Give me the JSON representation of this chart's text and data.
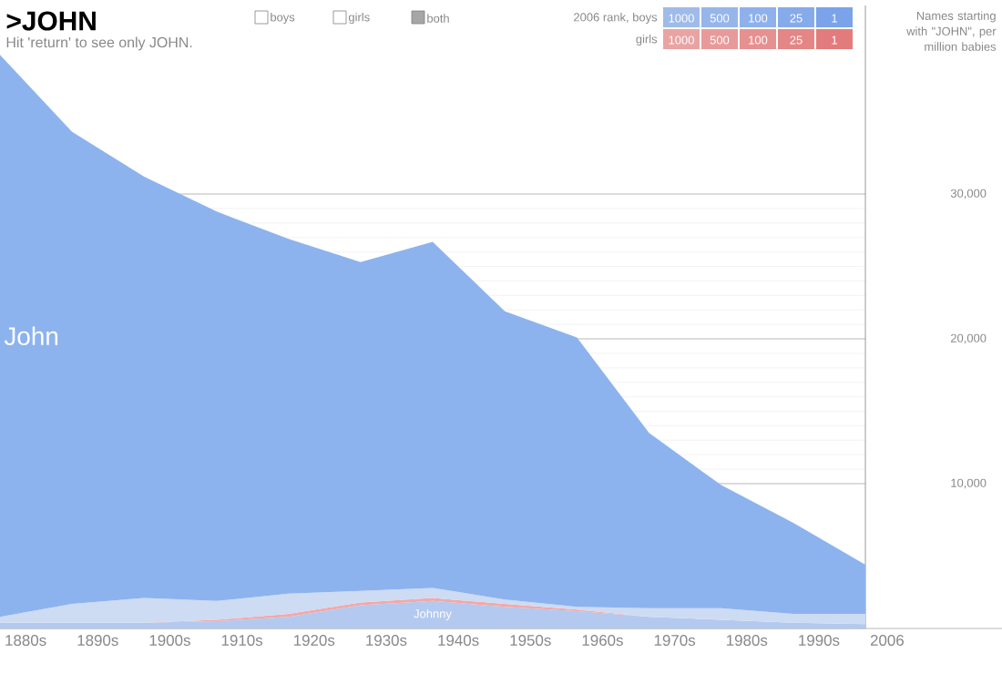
{
  "chart_data": {
    "type": "area",
    "title": ">JOHN",
    "subtitle": "Hit 'return' to see only JOHN.",
    "ylabel": "Names starting with \"JOHN\", per million babies",
    "annotations": [
      "boys",
      "girls",
      "both",
      "2006 rank, boys",
      "1000",
      "500",
      "100",
      "25",
      "1",
      "girls",
      "1000",
      "500",
      "100",
      "25",
      "1"
    ],
    "stacked": true,
    "grid": "y",
    "categories": [
      "1880s",
      "1890s",
      "1900s",
      "1910s",
      "1920s",
      "1930s",
      "1940s",
      "1950s",
      "1960s",
      "1970s",
      "1980s",
      "1990s",
      "2006"
    ],
    "ylim": [
      0,
      40000
    ],
    "yticks": [
      {
        "value": 10000,
        "label": "10,000"
      },
      {
        "value": 20000,
        "label": "20,000"
      },
      {
        "value": 30000,
        "label": "30,000"
      }
    ],
    "series": [
      {
        "name": "Johnny",
        "color": "#b3c9f0",
        "values": [
          400,
          400,
          400,
          500,
          800,
          1600,
          1900,
          1500,
          1200,
          800,
          600,
          400,
          300
        ]
      },
      {
        "color": "#f2a9a9",
        "values": [
          0,
          0,
          0,
          100,
          200,
          200,
          200,
          200,
          100,
          0,
          0,
          0,
          0
        ]
      },
      {
        "color": "#cddbf3",
        "values": [
          400,
          1300,
          1700,
          1300,
          1400,
          800,
          700,
          300,
          200,
          600,
          800,
          600,
          700
        ]
      },
      {
        "name": "John",
        "color": "#8db3ee",
        "values": [
          38800,
          32600,
          29100,
          26900,
          24500,
          22700,
          23900,
          19900,
          18600,
          12100,
          8500,
          6300,
          3400
        ]
      }
    ]
  }
}
